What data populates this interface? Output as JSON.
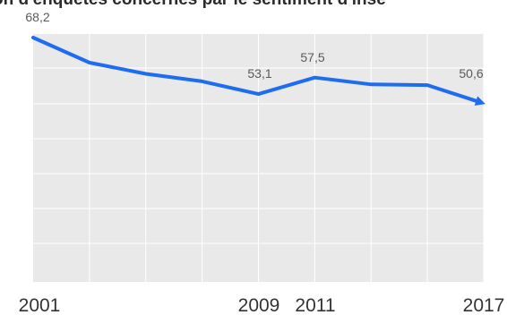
{
  "chart_data": {
    "type": "area",
    "title": "on d'enquêtés concernés par le sentiment d'insé",
    "x_tick_labels": [
      "2001",
      "2009",
      "2011",
      "2017"
    ],
    "series": [
      {
        "x": [
          2001,
          2003,
          2005,
          2007,
          2009,
          2011,
          2013,
          2015,
          2017
        ],
        "values": [
          68.2,
          61.5,
          58.5,
          56.5,
          53.1,
          57.5,
          55.7,
          55.5,
          50.6
        ],
        "labels": {
          "2001": "68,2",
          "2009": "53,1",
          "2011": "57,5",
          "2017": "50,6"
        }
      }
    ],
    "colors": {
      "line": "#1e6cf0",
      "area": "#e9e9e9",
      "grid": "#ffffff",
      "label_text": "#5a5a5a",
      "tick_text": "#333333"
    },
    "xlim": [
      2001,
      2017
    ],
    "grid": true,
    "legend": "none"
  }
}
